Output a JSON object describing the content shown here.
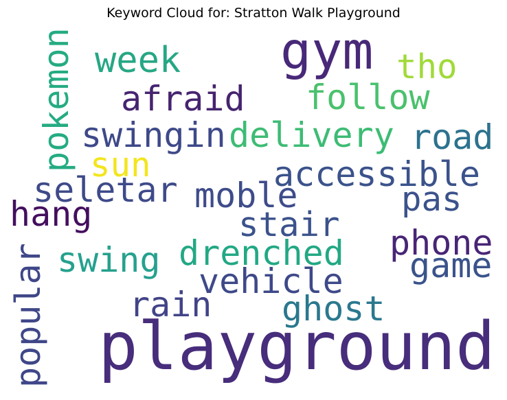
{
  "chart_data": {
    "type": "wordcloud",
    "title": "Keyword Cloud for: Stratton Walk Playground",
    "words": [
      {
        "text": "gym",
        "color": "#482878"
      },
      {
        "text": "week",
        "color": "#26a784"
      },
      {
        "text": "tho",
        "color": "#a0da39"
      },
      {
        "text": "afraid",
        "color": "#46246f"
      },
      {
        "text": "follow",
        "color": "#4ac16d"
      },
      {
        "text": "swingin",
        "color": "#3e4989"
      },
      {
        "text": "delivery",
        "color": "#3dbc74"
      },
      {
        "text": "road",
        "color": "#2c728e"
      },
      {
        "text": "sun",
        "color": "#f3e51e"
      },
      {
        "text": "accessible",
        "color": "#3b528b"
      },
      {
        "text": "seletar",
        "color": "#3e4a89"
      },
      {
        "text": "moble",
        "color": "#3e4c8a"
      },
      {
        "text": "pas",
        "color": "#3b528b"
      },
      {
        "text": "hang",
        "color": "#440f5e"
      },
      {
        "text": "stair",
        "color": "#3b528b"
      },
      {
        "text": "phone",
        "color": "#482576"
      },
      {
        "text": "drenched",
        "color": "#22a884"
      },
      {
        "text": "swing",
        "color": "#25a18e"
      },
      {
        "text": "game",
        "color": "#3a538b"
      },
      {
        "text": "vehicle",
        "color": "#3e4989"
      },
      {
        "text": "rain",
        "color": "#414487"
      },
      {
        "text": "ghost",
        "color": "#2a788e"
      },
      {
        "text": "playground",
        "color": "#472d7b"
      },
      {
        "text": "pokemon",
        "color": "#25ab82"
      },
      {
        "text": "popular",
        "color": "#3f4788"
      }
    ]
  }
}
